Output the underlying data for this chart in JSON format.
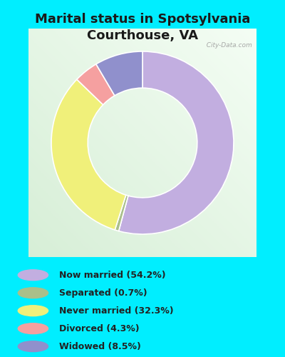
{
  "title": "Marital status in Spotsylvania\nCourthouse, VA",
  "title_fontsize": 13,
  "title_fontweight": "bold",
  "background_color": "#00eeff",
  "chart_bg_top": "#e8f5e8",
  "chart_bg_bottom": "#f5fff5",
  "slices": [
    54.2,
    0.7,
    32.3,
    4.3,
    8.5
  ],
  "colors": [
    "#c2aee0",
    "#aabf8a",
    "#f0f07a",
    "#f5a0a0",
    "#9090cc"
  ],
  "labels": [
    "Now married (54.2%)",
    "Separated (0.7%)",
    "Never married (32.3%)",
    "Divorced (4.3%)",
    "Widowed (8.5%)"
  ],
  "legend_colors": [
    "#c2aee0",
    "#aabf8a",
    "#f0f07a",
    "#f5a0a0",
    "#9090cc"
  ],
  "donut_width": 0.4,
  "start_angle": 90,
  "watermark": "  City-Data.com"
}
